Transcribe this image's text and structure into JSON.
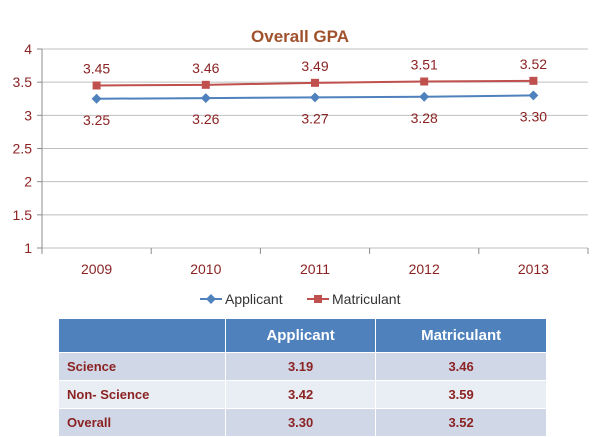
{
  "chart_data": {
    "type": "line",
    "title": "Overall GPA",
    "categories": [
      "2009",
      "2010",
      "2011",
      "2012",
      "2013"
    ],
    "ylim": [
      1,
      4
    ],
    "yticks": [
      "1",
      "1.5",
      "2",
      "2.5",
      "3",
      "3.5",
      "4"
    ],
    "legend_placement": "bottom",
    "series": [
      {
        "name": "Applicant",
        "values": [
          3.25,
          3.26,
          3.27,
          3.28,
          3.3
        ],
        "labels": [
          "3.25",
          "3.26",
          "3.27",
          "3.28",
          "3.30"
        ],
        "color": "#4f81bd"
      },
      {
        "name": "Matriculant",
        "values": [
          3.45,
          3.46,
          3.49,
          3.51,
          3.52
        ],
        "labels": [
          "3.45",
          "3.46",
          "3.49",
          "3.51",
          "3.52"
        ],
        "color": "#c0504d"
      }
    ]
  },
  "table": {
    "headers": [
      "",
      "Applicant",
      "Matriculant"
    ],
    "rows": [
      {
        "label": "Science",
        "applicant": "3.19",
        "matriculant": "3.46"
      },
      {
        "label": "Non- Science",
        "applicant": "3.42",
        "matriculant": "3.59"
      },
      {
        "label": "Overall",
        "applicant": "3.30",
        "matriculant": "3.52"
      }
    ]
  },
  "colors": {
    "title_text": "#a0522d",
    "axis_text": "#8b2323"
  }
}
